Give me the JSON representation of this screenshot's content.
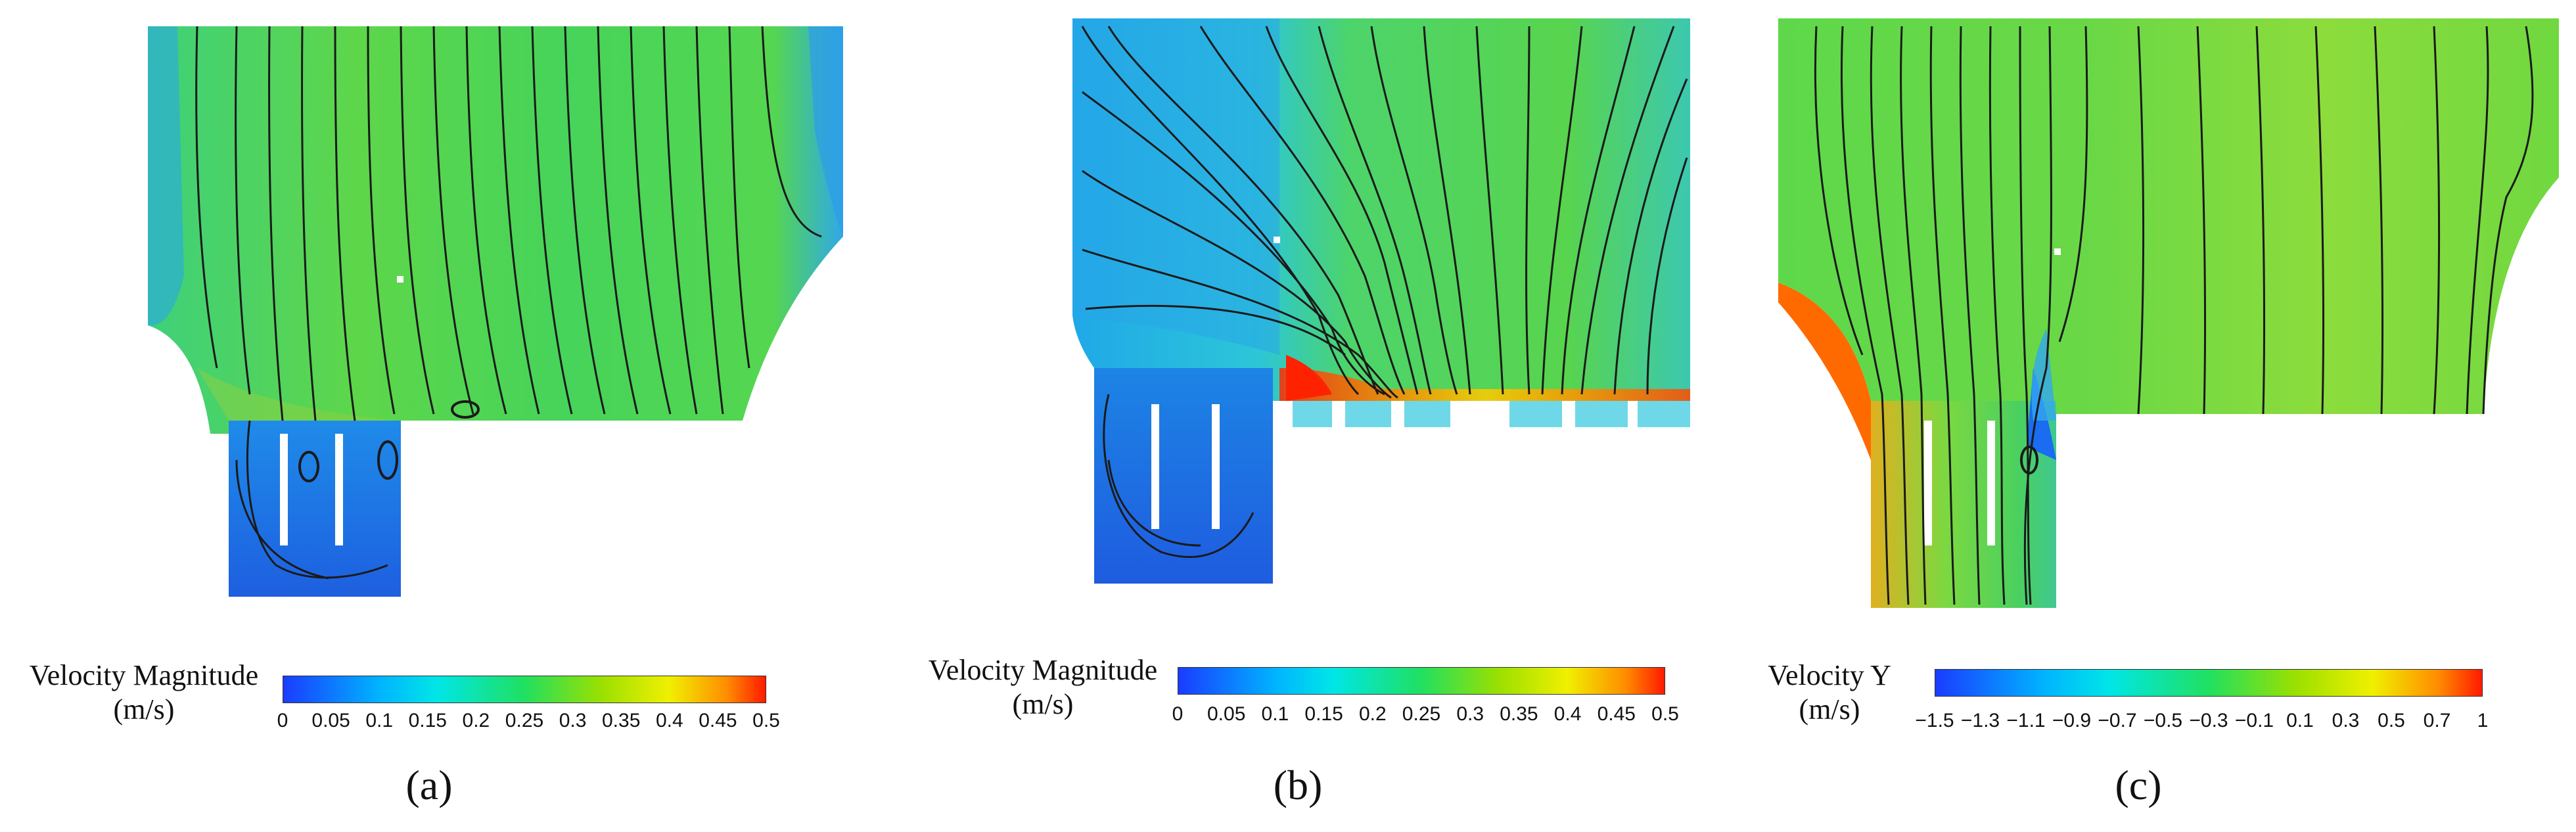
{
  "panels": [
    {
      "id": "a",
      "label": "(a)",
      "legend_title_1": "Velocity Magnitude",
      "legend_title_2": "(m/s)",
      "ticks": [
        "0",
        "0.05",
        "0.1",
        "0.15",
        "0.2",
        "0.25",
        "0.3",
        "0.35",
        "0.4",
        "0.45",
        "0.5"
      ]
    },
    {
      "id": "b",
      "label": "(b)",
      "legend_title_1": "Velocity Magnitude",
      "legend_title_2": "(m/s)",
      "ticks": [
        "0",
        "0.05",
        "0.1",
        "0.15",
        "0.2",
        "0.25",
        "0.3",
        "0.35",
        "0.4",
        "0.45",
        "0.5"
      ]
    },
    {
      "id": "c",
      "label": "(c)",
      "legend_title_1": "Velocity Y",
      "legend_title_2": "(m/s)",
      "ticks": [
        "−1.5",
        "−1.3",
        "−1.1",
        "−0.9",
        "−0.7",
        "−0.5",
        "−0.3",
        "−0.1",
        "0.1",
        "0.3",
        "0.5",
        "0.7",
        "1"
      ]
    }
  ],
  "colors": {
    "scale_1": "#1a3cff",
    "scale_2": "#00b4ff",
    "scale_3": "#00e6e6",
    "scale_4": "#20e060",
    "scale_5": "#9be000",
    "scale_6": "#f0f000",
    "scale_7": "#ff8c00",
    "scale_8": "#ff1a00",
    "streamline": "#1a1a1a"
  }
}
